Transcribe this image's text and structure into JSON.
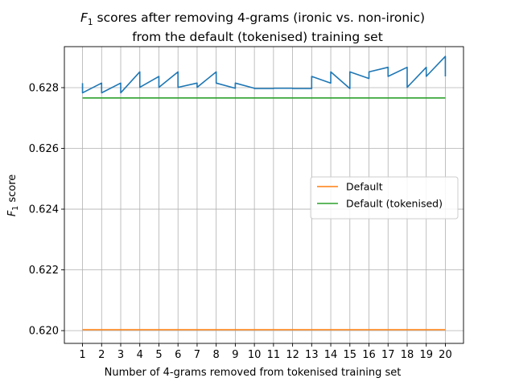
{
  "chart_data": {
    "type": "line",
    "title_line1_prefix": "F",
    "title_line1_sub": "1",
    "title_line1_rest": " scores after removing 4-grams (ironic vs. non-ironic)",
    "title_line2": "from the default (tokenised) training set",
    "xlabel": "Number of 4-grams removed from tokenised training set",
    "ylabel_prefix": "F",
    "ylabel_sub": "1",
    "ylabel_rest": " score",
    "xlim": [
      0.05,
      20.95
    ],
    "ylim": [
      0.61958,
      0.62935
    ],
    "xticks": [
      1,
      2,
      3,
      4,
      5,
      6,
      7,
      8,
      9,
      10,
      11,
      12,
      13,
      14,
      15,
      16,
      17,
      18,
      19,
      20
    ],
    "yticks": [
      0.62,
      0.622,
      0.624,
      0.626,
      0.628
    ],
    "ytick_labels": [
      "0.620",
      "0.622",
      "0.624",
      "0.626",
      "0.628"
    ],
    "grid": true,
    "legend_position": "center-right",
    "series": [
      {
        "color": "#1f77b4",
        "x": [
          1,
          1,
          2,
          2,
          3,
          3,
          4,
          4,
          5,
          5,
          6,
          6,
          7,
          7,
          8,
          8,
          9,
          9,
          10,
          10,
          11,
          11,
          12,
          12,
          13,
          13,
          14,
          14,
          15,
          15,
          16,
          16,
          17,
          17,
          18,
          18,
          19,
          19,
          20,
          20
        ],
        "y": [
          0.62815,
          0.62783,
          0.62815,
          0.62783,
          0.62815,
          0.62783,
          0.62852,
          0.62801,
          0.62837,
          0.62801,
          0.62852,
          0.62801,
          0.62815,
          0.62801,
          0.62852,
          0.62815,
          0.62798,
          0.62815,
          0.62798,
          0.62797,
          0.62797,
          0.62798,
          0.62798,
          0.62797,
          0.62797,
          0.62837,
          0.62815,
          0.62852,
          0.62797,
          0.62852,
          0.6283,
          0.62852,
          0.62867,
          0.62837,
          0.62867,
          0.62801,
          0.62867,
          0.62837,
          0.62903,
          0.62837
        ]
      },
      {
        "name": "Default",
        "color": "#ff7f0e",
        "x": [
          1,
          20
        ],
        "y": [
          0.62003,
          0.62003
        ]
      },
      {
        "name": "Default (tokenised)",
        "color": "#2ca02c",
        "x": [
          1,
          20
        ],
        "y": [
          0.62766,
          0.62766
        ]
      }
    ]
  }
}
